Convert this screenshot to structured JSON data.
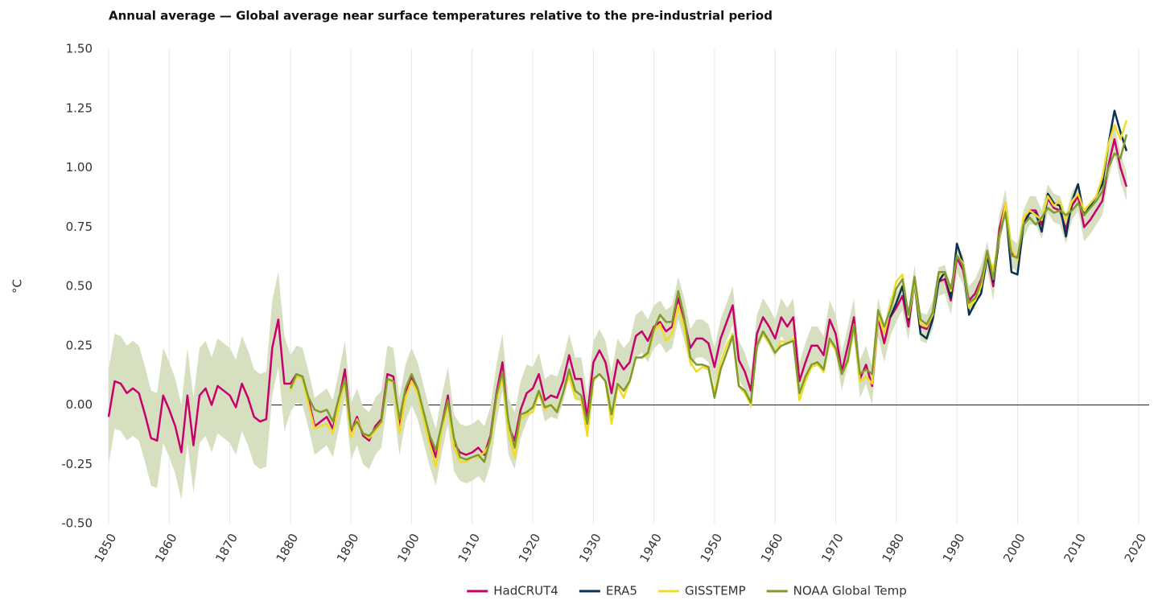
{
  "chart_data": {
    "type": "line",
    "title": "Annual average — Global average near surface temperatures relative to the pre-industrial period",
    "ylabel": "°C",
    "xlim": [
      1850,
      2020
    ],
    "xticks": [
      1850,
      1860,
      1870,
      1880,
      1890,
      1900,
      1910,
      1920,
      1930,
      1940,
      1950,
      1960,
      1970,
      1980,
      1990,
      2000,
      2010,
      2020
    ],
    "ylim": [
      -0.5,
      1.5
    ],
    "yticks": [
      {
        "value": -0.5,
        "label": "-0.50"
      },
      {
        "value": -0.25,
        "label": "-0.25"
      },
      {
        "value": 0,
        "label": "0.00"
      },
      {
        "value": 0.25,
        "label": "0.25"
      },
      {
        "value": 0.5,
        "label": "0.50"
      },
      {
        "value": 0.75,
        "label": "0.75"
      },
      {
        "value": 1,
        "label": "1.00"
      },
      {
        "value": 1.25,
        "label": "1.25"
      },
      {
        "value": 1.5,
        "label": "1.50"
      }
    ],
    "grid": true,
    "legend": "bottom",
    "x": [
      1850,
      1851,
      1852,
      1853,
      1854,
      1855,
      1856,
      1857,
      1858,
      1859,
      1860,
      1861,
      1862,
      1863,
      1864,
      1865,
      1866,
      1867,
      1868,
      1869,
      1870,
      1871,
      1872,
      1873,
      1874,
      1875,
      1876,
      1877,
      1878,
      1879,
      1880,
      1881,
      1882,
      1883,
      1884,
      1885,
      1886,
      1887,
      1888,
      1889,
      1890,
      1891,
      1892,
      1893,
      1894,
      1895,
      1896,
      1897,
      1898,
      1899,
      1900,
      1901,
      1902,
      1903,
      1904,
      1905,
      1906,
      1907,
      1908,
      1909,
      1910,
      1911,
      1912,
      1913,
      1914,
      1915,
      1916,
      1917,
      1918,
      1919,
      1920,
      1921,
      1922,
      1923,
      1924,
      1925,
      1926,
      1927,
      1928,
      1929,
      1930,
      1931,
      1932,
      1933,
      1934,
      1935,
      1936,
      1937,
      1938,
      1939,
      1940,
      1941,
      1942,
      1943,
      1944,
      1945,
      1946,
      1947,
      1948,
      1949,
      1950,
      1951,
      1952,
      1953,
      1954,
      1955,
      1956,
      1957,
      1958,
      1959,
      1960,
      1961,
      1962,
      1963,
      1964,
      1965,
      1966,
      1967,
      1968,
      1969,
      1970,
      1971,
      1972,
      1973,
      1974,
      1975,
      1976,
      1977,
      1978,
      1979,
      1980,
      1981,
      1982,
      1983,
      1984,
      1985,
      1986,
      1987,
      1988,
      1989,
      1990,
      1991,
      1992,
      1993,
      1994,
      1995,
      1996,
      1997,
      1998,
      1999,
      2000,
      2001,
      2002,
      2003,
      2004,
      2005,
      2006,
      2007,
      2008,
      2009,
      2010,
      2011,
      2012,
      2013,
      2014,
      2015,
      2016,
      2017,
      2018
    ],
    "uncertainty": {
      "color": "#d6dfbf",
      "lower": [
        -0.25,
        -0.1,
        -0.11,
        -0.15,
        -0.13,
        -0.15,
        -0.24,
        -0.34,
        -0.35,
        -0.16,
        -0.22,
        -0.29,
        -0.4,
        -0.16,
        -0.37,
        -0.16,
        -0.13,
        -0.2,
        -0.12,
        -0.14,
        -0.16,
        -0.21,
        -0.11,
        -0.17,
        -0.25,
        -0.27,
        -0.26,
        0.04,
        0.16,
        -0.11,
        -0.03,
        0.01,
        0.0,
        -0.1,
        -0.21,
        -0.19,
        -0.17,
        -0.22,
        -0.1,
        0.03,
        -0.23,
        -0.17,
        -0.25,
        -0.27,
        -0.21,
        -0.18,
        0.01,
        0.0,
        -0.21,
        -0.07,
        0.0,
        -0.06,
        -0.16,
        -0.26,
        -0.34,
        -0.2,
        -0.08,
        -0.28,
        -0.32,
        -0.33,
        -0.32,
        -0.3,
        -0.33,
        -0.25,
        -0.07,
        0.06,
        -0.21,
        -0.27,
        -0.14,
        -0.07,
        -0.02,
        0.04,
        -0.07,
        -0.05,
        -0.06,
        0.01,
        0.12,
        0.02,
        0.02,
        -0.14,
        0.09,
        0.14,
        0.09,
        -0.04,
        0.1,
        0.06,
        0.09,
        0.2,
        0.22,
        0.18,
        0.24,
        0.26,
        0.22,
        0.24,
        0.36,
        0.27,
        0.16,
        0.2,
        0.2,
        0.18,
        0.08,
        0.2,
        0.27,
        0.34,
        0.11,
        0.06,
        -0.02,
        0.22,
        0.29,
        0.25,
        0.2,
        0.29,
        0.25,
        0.29,
        0.02,
        0.1,
        0.17,
        0.17,
        0.13,
        0.28,
        0.22,
        0.06,
        0.17,
        0.29,
        0.03,
        0.09,
        0.0,
        0.29,
        0.18,
        0.29,
        0.35,
        0.4,
        0.27,
        0.47,
        0.27,
        0.26,
        0.32,
        0.46,
        0.47,
        0.38,
        0.56,
        0.51,
        0.38,
        0.41,
        0.47,
        0.57,
        0.44,
        0.68,
        0.79,
        0.58,
        0.56,
        0.7,
        0.76,
        0.76,
        0.7,
        0.81,
        0.77,
        0.76,
        0.68,
        0.78,
        0.82,
        0.69,
        0.72,
        0.76,
        0.8,
        0.95,
        1.06,
        0.94,
        0.86
      ],
      "upper": [
        0.15,
        0.3,
        0.29,
        0.25,
        0.27,
        0.25,
        0.16,
        0.06,
        0.05,
        0.24,
        0.18,
        0.11,
        0.0,
        0.24,
        0.03,
        0.24,
        0.27,
        0.2,
        0.28,
        0.26,
        0.24,
        0.19,
        0.29,
        0.23,
        0.15,
        0.13,
        0.14,
        0.44,
        0.56,
        0.29,
        0.21,
        0.25,
        0.24,
        0.14,
        0.03,
        0.05,
        0.07,
        0.02,
        0.14,
        0.27,
        0.01,
        0.07,
        -0.01,
        -0.03,
        0.03,
        0.06,
        0.25,
        0.24,
        0.03,
        0.17,
        0.24,
        0.18,
        0.08,
        -0.02,
        -0.1,
        0.04,
        0.16,
        -0.04,
        -0.08,
        -0.09,
        -0.08,
        -0.06,
        -0.09,
        -0.01,
        0.17,
        0.3,
        0.03,
        -0.03,
        0.1,
        0.17,
        0.16,
        0.22,
        0.11,
        0.13,
        0.12,
        0.19,
        0.3,
        0.2,
        0.2,
        0.04,
        0.27,
        0.32,
        0.27,
        0.14,
        0.28,
        0.24,
        0.27,
        0.38,
        0.4,
        0.36,
        0.42,
        0.44,
        0.4,
        0.42,
        0.54,
        0.45,
        0.32,
        0.36,
        0.36,
        0.34,
        0.24,
        0.36,
        0.43,
        0.5,
        0.27,
        0.22,
        0.14,
        0.38,
        0.45,
        0.41,
        0.36,
        0.45,
        0.41,
        0.45,
        0.18,
        0.26,
        0.33,
        0.33,
        0.29,
        0.44,
        0.38,
        0.22,
        0.33,
        0.45,
        0.19,
        0.25,
        0.16,
        0.45,
        0.34,
        0.45,
        0.47,
        0.52,
        0.39,
        0.59,
        0.39,
        0.38,
        0.44,
        0.58,
        0.59,
        0.5,
        0.68,
        0.63,
        0.5,
        0.53,
        0.59,
        0.69,
        0.56,
        0.8,
        0.91,
        0.7,
        0.68,
        0.82,
        0.88,
        0.88,
        0.82,
        0.93,
        0.89,
        0.88,
        0.8,
        0.9,
        0.94,
        0.81,
        0.84,
        0.88,
        0.92,
        1.07,
        1.18,
        1.06,
        0.98
      ]
    },
    "series": [
      {
        "name": "HadCRUT4",
        "color": "#c8006e",
        "values": [
          -0.05,
          0.1,
          0.09,
          0.05,
          0.07,
          0.05,
          -0.04,
          -0.14,
          -0.15,
          0.04,
          -0.02,
          -0.09,
          -0.2,
          0.04,
          -0.17,
          0.04,
          0.07,
          0.0,
          0.08,
          0.06,
          0.04,
          -0.01,
          0.09,
          0.03,
          -0.05,
          -0.07,
          -0.06,
          0.24,
          0.36,
          0.09,
          0.09,
          0.13,
          0.12,
          0.02,
          -0.09,
          -0.07,
          -0.05,
          -0.1,
          0.02,
          0.15,
          -0.11,
          -0.05,
          -0.13,
          -0.15,
          -0.09,
          -0.06,
          0.13,
          0.12,
          -0.09,
          0.05,
          0.12,
          0.06,
          -0.04,
          -0.14,
          -0.22,
          -0.08,
          0.04,
          -0.16,
          -0.2,
          -0.21,
          -0.2,
          -0.18,
          -0.21,
          -0.13,
          0.05,
          0.18,
          -0.09,
          -0.15,
          -0.02,
          0.05,
          0.07,
          0.13,
          0.02,
          0.04,
          0.03,
          0.1,
          0.21,
          0.11,
          0.11,
          -0.05,
          0.18,
          0.23,
          0.18,
          0.05,
          0.19,
          0.15,
          0.18,
          0.29,
          0.31,
          0.27,
          0.33,
          0.35,
          0.31,
          0.33,
          0.45,
          0.36,
          0.24,
          0.28,
          0.28,
          0.26,
          0.16,
          0.28,
          0.35,
          0.42,
          0.19,
          0.14,
          0.06,
          0.3,
          0.37,
          0.33,
          0.28,
          0.37,
          0.33,
          0.37,
          0.1,
          0.18,
          0.25,
          0.25,
          0.21,
          0.36,
          0.3,
          0.14,
          0.25,
          0.37,
          0.11,
          0.17,
          0.08,
          0.37,
          0.26,
          0.37,
          0.41,
          0.46,
          0.33,
          0.53,
          0.33,
          0.32,
          0.38,
          0.52,
          0.53,
          0.44,
          0.62,
          0.57,
          0.44,
          0.47,
          0.53,
          0.63,
          0.5,
          0.74,
          0.85,
          0.64,
          0.62,
          0.76,
          0.82,
          0.82,
          0.76,
          0.87,
          0.83,
          0.82,
          0.74,
          0.84,
          0.88,
          0.75,
          0.78,
          0.82,
          0.86,
          1.01,
          1.12,
          1.0,
          0.92
        ]
      },
      {
        "name": "ERA5",
        "color": "#0b2f4f",
        "values": [
          null,
          null,
          null,
          null,
          null,
          null,
          null,
          null,
          null,
          null,
          null,
          null,
          null,
          null,
          null,
          null,
          null,
          null,
          null,
          null,
          null,
          null,
          null,
          null,
          null,
          null,
          null,
          null,
          null,
          null,
          null,
          null,
          null,
          null,
          null,
          null,
          null,
          null,
          null,
          null,
          null,
          null,
          null,
          null,
          null,
          null,
          null,
          null,
          null,
          null,
          null,
          null,
          null,
          null,
          null,
          null,
          null,
          null,
          null,
          null,
          null,
          null,
          null,
          null,
          null,
          null,
          null,
          null,
          null,
          null,
          null,
          null,
          null,
          null,
          null,
          null,
          null,
          null,
          null,
          null,
          null,
          null,
          null,
          null,
          null,
          null,
          null,
          null,
          null,
          null,
          null,
          null,
          null,
          null,
          null,
          null,
          null,
          null,
          null,
          null,
          null,
          null,
          null,
          null,
          null,
          null,
          null,
          null,
          null,
          null,
          null,
          null,
          null,
          null,
          null,
          null,
          null,
          null,
          null,
          null,
          null,
          null,
          null,
          null,
          null,
          null,
          null,
          null,
          null,
          0.37,
          0.43,
          0.5,
          0.36,
          0.52,
          0.3,
          0.28,
          0.36,
          0.52,
          0.56,
          0.45,
          0.68,
          0.6,
          0.38,
          0.43,
          0.47,
          0.63,
          0.52,
          0.7,
          0.83,
          0.56,
          0.55,
          0.76,
          0.81,
          0.81,
          0.73,
          0.89,
          0.85,
          0.84,
          0.71,
          0.86,
          0.93,
          0.8,
          0.84,
          0.88,
          0.93,
          1.1,
          1.24,
          1.15,
          1.07
        ]
      },
      {
        "name": "GISSTEMP",
        "color": "#f0dc28",
        "values": [
          null,
          null,
          null,
          null,
          null,
          null,
          null,
          null,
          null,
          null,
          null,
          null,
          null,
          null,
          null,
          null,
          null,
          null,
          null,
          null,
          null,
          null,
          null,
          null,
          null,
          null,
          null,
          null,
          null,
          null,
          0.06,
          0.12,
          0.11,
          0.0,
          -0.1,
          -0.09,
          -0.08,
          -0.12,
          0.0,
          0.1,
          -0.14,
          -0.06,
          -0.12,
          -0.14,
          -0.11,
          -0.08,
          0.1,
          0.1,
          -0.12,
          0.03,
          0.1,
          0.05,
          -0.06,
          -0.17,
          -0.26,
          -0.1,
          0.0,
          -0.18,
          -0.24,
          -0.24,
          -0.22,
          -0.22,
          -0.2,
          -0.16,
          0.02,
          0.12,
          -0.12,
          -0.22,
          -0.06,
          -0.04,
          -0.03,
          0.05,
          -0.02,
          0.0,
          -0.02,
          0.05,
          0.12,
          0.03,
          0.02,
          -0.13,
          0.1,
          0.13,
          0.1,
          -0.08,
          0.08,
          0.03,
          0.1,
          0.2,
          0.2,
          0.21,
          0.31,
          0.34,
          0.27,
          0.3,
          0.42,
          0.32,
          0.18,
          0.14,
          0.16,
          0.15,
          0.05,
          0.18,
          0.25,
          0.3,
          0.08,
          0.05,
          0.0,
          0.25,
          0.3,
          0.26,
          0.22,
          0.27,
          0.26,
          0.28,
          0.02,
          0.1,
          0.16,
          0.17,
          0.14,
          0.27,
          0.23,
          0.13,
          0.18,
          0.33,
          0.1,
          0.12,
          0.09,
          0.38,
          0.3,
          0.42,
          0.52,
          0.55,
          0.37,
          0.52,
          0.34,
          0.33,
          0.38,
          0.55,
          0.56,
          0.48,
          0.63,
          0.6,
          0.41,
          0.44,
          0.5,
          0.64,
          0.57,
          0.7,
          0.85,
          0.66,
          0.61,
          0.79,
          0.82,
          0.8,
          0.78,
          0.88,
          0.84,
          0.86,
          0.78,
          0.86,
          0.89,
          0.82,
          0.85,
          0.88,
          0.96,
          1.1,
          1.18,
          1.12,
          1.2
        ]
      },
      {
        "name": "NOAA Global Temp",
        "color": "#7f9a2e",
        "values": [
          null,
          null,
          null,
          null,
          null,
          null,
          null,
          null,
          null,
          null,
          null,
          null,
          null,
          null,
          null,
          null,
          null,
          null,
          null,
          null,
          null,
          null,
          null,
          null,
          null,
          null,
          null,
          null,
          null,
          null,
          0.07,
          0.13,
          0.12,
          0.03,
          -0.02,
          -0.03,
          -0.02,
          -0.07,
          0.03,
          0.11,
          -0.1,
          -0.07,
          -0.12,
          -0.13,
          -0.1,
          -0.07,
          0.11,
          0.1,
          -0.06,
          0.07,
          0.13,
          0.07,
          -0.03,
          -0.13,
          -0.19,
          -0.08,
          0.02,
          -0.14,
          -0.22,
          -0.23,
          -0.22,
          -0.21,
          -0.24,
          -0.14,
          0.04,
          0.14,
          -0.07,
          -0.18,
          -0.04,
          -0.03,
          -0.01,
          0.06,
          -0.01,
          0.0,
          -0.03,
          0.05,
          0.15,
          0.06,
          0.04,
          -0.08,
          0.11,
          0.13,
          0.1,
          -0.04,
          0.09,
          0.06,
          0.1,
          0.2,
          0.2,
          0.22,
          0.32,
          0.38,
          0.35,
          0.35,
          0.48,
          0.37,
          0.2,
          0.17,
          0.17,
          0.16,
          0.03,
          0.15,
          0.22,
          0.29,
          0.08,
          0.06,
          0.01,
          0.25,
          0.31,
          0.27,
          0.22,
          0.25,
          0.26,
          0.27,
          0.05,
          0.12,
          0.17,
          0.18,
          0.15,
          0.28,
          0.24,
          0.13,
          0.19,
          0.34,
          0.13,
          0.15,
          0.13,
          0.4,
          0.33,
          0.4,
          0.49,
          0.53,
          0.38,
          0.54,
          0.36,
          0.34,
          0.39,
          0.56,
          0.56,
          0.49,
          0.63,
          0.59,
          0.43,
          0.45,
          0.52,
          0.65,
          0.53,
          0.72,
          0.81,
          0.63,
          0.62,
          0.76,
          0.79,
          0.76,
          0.79,
          0.83,
          0.81,
          0.82,
          0.8,
          0.82,
          0.85,
          0.8,
          0.83,
          0.86,
          0.9,
          1.0,
          1.06,
          1.04,
          1.14
        ]
      }
    ]
  }
}
